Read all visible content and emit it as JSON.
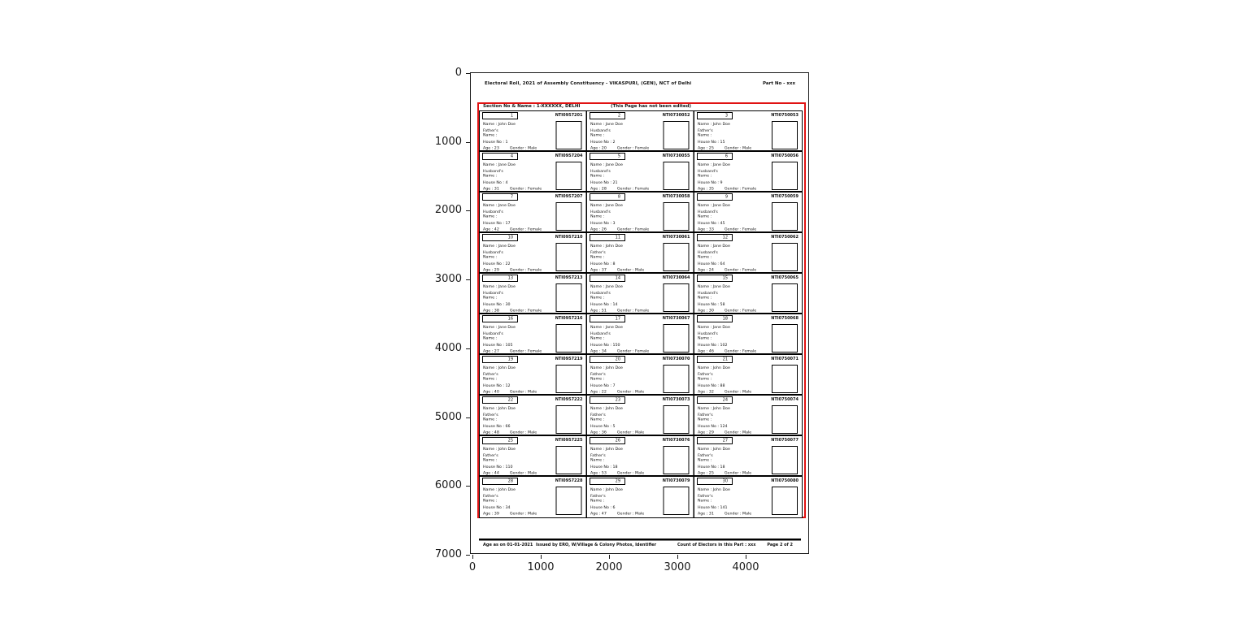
{
  "figure": {
    "x_ticks": [
      "0",
      "1000",
      "2000",
      "3000",
      "4000"
    ],
    "y_ticks": [
      "0",
      "1000",
      "2000",
      "3000",
      "4000",
      "5000",
      "6000",
      "7000"
    ],
    "highlight_color": "#e01212"
  },
  "page": {
    "header_title": "Electoral Roll, 2021 of Assembly Constituency - VIKASPURI, (GEN), NCT of Delhi",
    "part_no": "Part No - xxx",
    "section_label": "Section No & Name : 1-XXXXXX, DELHI",
    "section_note": "(This Page has not been edited)",
    "card_labels": {
      "name": "Name :",
      "relation_suffix": "Name :",
      "house": "House No :",
      "age": "Age :",
      "gender": "Gender :"
    },
    "voters": [
      {
        "serial": "1",
        "epic": "NTI0957201",
        "name": "John Doe",
        "relation": "Father's",
        "house": "1",
        "age": "23",
        "gender": "Male"
      },
      {
        "serial": "2",
        "epic": "NTI0730052",
        "name": "Jane Doe",
        "relation": "Husband's",
        "house": "2",
        "age": "20",
        "gender": "Female"
      },
      {
        "serial": "3",
        "epic": "NTI0750053",
        "name": "John Doe",
        "relation": "Father's",
        "house": "15",
        "age": "25",
        "gender": "Male"
      },
      {
        "serial": "4",
        "epic": "NTI0957204",
        "name": "Jane Doe",
        "relation": "Husband's",
        "house": "4",
        "age": "31",
        "gender": "Female"
      },
      {
        "serial": "5",
        "epic": "NTI0730055",
        "name": "Jane Doe",
        "relation": "Husband's",
        "house": "21",
        "age": "28",
        "gender": "Female"
      },
      {
        "serial": "6",
        "epic": "NTI0750056",
        "name": "Jane Doe",
        "relation": "Husband's",
        "house": "9",
        "age": "35",
        "gender": "Female"
      },
      {
        "serial": "7",
        "epic": "NTI0957207",
        "name": "Jane Doe",
        "relation": "Husband's",
        "house": "17",
        "age": "42",
        "gender": "Female"
      },
      {
        "serial": "8",
        "epic": "NTI0730058",
        "name": "Jane Doe",
        "relation": "Husband's",
        "house": "3",
        "age": "26",
        "gender": "Female"
      },
      {
        "serial": "9",
        "epic": "NTI0750059",
        "name": "Jane Doe",
        "relation": "Husband's",
        "house": "45",
        "age": "33",
        "gender": "Female"
      },
      {
        "serial": "10",
        "epic": "NTI0957210",
        "name": "Jane Doe",
        "relation": "Husband's",
        "house": "22",
        "age": "29",
        "gender": "Female"
      },
      {
        "serial": "11",
        "epic": "NTI0730061",
        "name": "John Doe",
        "relation": "Father's",
        "house": "8",
        "age": "37",
        "gender": "Male"
      },
      {
        "serial": "12",
        "epic": "NTI0750062",
        "name": "Jane Doe",
        "relation": "Husband's",
        "house": "64",
        "age": "24",
        "gender": "Female"
      },
      {
        "serial": "13",
        "epic": "NTI0957213",
        "name": "Jane Doe",
        "relation": "Husband's",
        "house": "30",
        "age": "38",
        "gender": "Female"
      },
      {
        "serial": "14",
        "epic": "NTI0730064",
        "name": "Jane Doe",
        "relation": "Husband's",
        "house": "14",
        "age": "51",
        "gender": "Female"
      },
      {
        "serial": "15",
        "epic": "NTI0750065",
        "name": "Jane Doe",
        "relation": "Husband's",
        "house": "58",
        "age": "30",
        "gender": "Female"
      },
      {
        "serial": "16",
        "epic": "NTI0957216",
        "name": "Jane Doe",
        "relation": "Husband's",
        "house": "105",
        "age": "27",
        "gender": "Female"
      },
      {
        "serial": "17",
        "epic": "NTI0730067",
        "name": "Jane Doe",
        "relation": "Husband's",
        "house": "150",
        "age": "34",
        "gender": "Female"
      },
      {
        "serial": "18",
        "epic": "NTI0750068",
        "name": "Jane Doe",
        "relation": "Husband's",
        "house": "102",
        "age": "46",
        "gender": "Female"
      },
      {
        "serial": "19",
        "epic": "NTI0957219",
        "name": "John Doe",
        "relation": "Father's",
        "house": "12",
        "age": "40",
        "gender": "Male"
      },
      {
        "serial": "20",
        "epic": "NTI0730070",
        "name": "John Doe",
        "relation": "Father's",
        "house": "7",
        "age": "22",
        "gender": "Male"
      },
      {
        "serial": "21",
        "epic": "NTI0750071",
        "name": "John Doe",
        "relation": "Father's",
        "house": "88",
        "age": "32",
        "gender": "Male"
      },
      {
        "serial": "22",
        "epic": "NTI0957222",
        "name": "John Doe",
        "relation": "Father's",
        "house": "66",
        "age": "48",
        "gender": "Male"
      },
      {
        "serial": "23",
        "epic": "NTI0730073",
        "name": "John Doe",
        "relation": "Father's",
        "house": "5",
        "age": "36",
        "gender": "Male"
      },
      {
        "serial": "24",
        "epic": "NTI0750074",
        "name": "John Doe",
        "relation": "Father's",
        "house": "124",
        "age": "29",
        "gender": "Male"
      },
      {
        "serial": "25",
        "epic": "NTI0957225",
        "name": "John Doe",
        "relation": "Father's",
        "house": "110",
        "age": "44",
        "gender": "Male"
      },
      {
        "serial": "26",
        "epic": "NTI0730076",
        "name": "John Doe",
        "relation": "Father's",
        "house": "18",
        "age": "53",
        "gender": "Male"
      },
      {
        "serial": "27",
        "epic": "NTI0750077",
        "name": "John Doe",
        "relation": "Father's",
        "house": "18",
        "age": "25",
        "gender": "Male"
      },
      {
        "serial": "28",
        "epic": "NTI0957228",
        "name": "John Doe",
        "relation": "Father's",
        "house": "34",
        "age": "39",
        "gender": "Male"
      },
      {
        "serial": "29",
        "epic": "NTI0730079",
        "name": "John Doe",
        "relation": "Father's",
        "house": "6",
        "age": "47",
        "gender": "Male"
      },
      {
        "serial": "30",
        "epic": "NTI0750080",
        "name": "John Doe",
        "relation": "Father's",
        "house": "141",
        "age": "31",
        "gender": "Male"
      }
    ],
    "footer": {
      "age_ref": "Age as on 01-01-2021",
      "issue_info": "Issued by ERO, W/Village & Colony Photos, Identifier",
      "elector_count": "Count of Electors in this Part : xxx",
      "page_info": "Page 2 of 2"
    }
  }
}
